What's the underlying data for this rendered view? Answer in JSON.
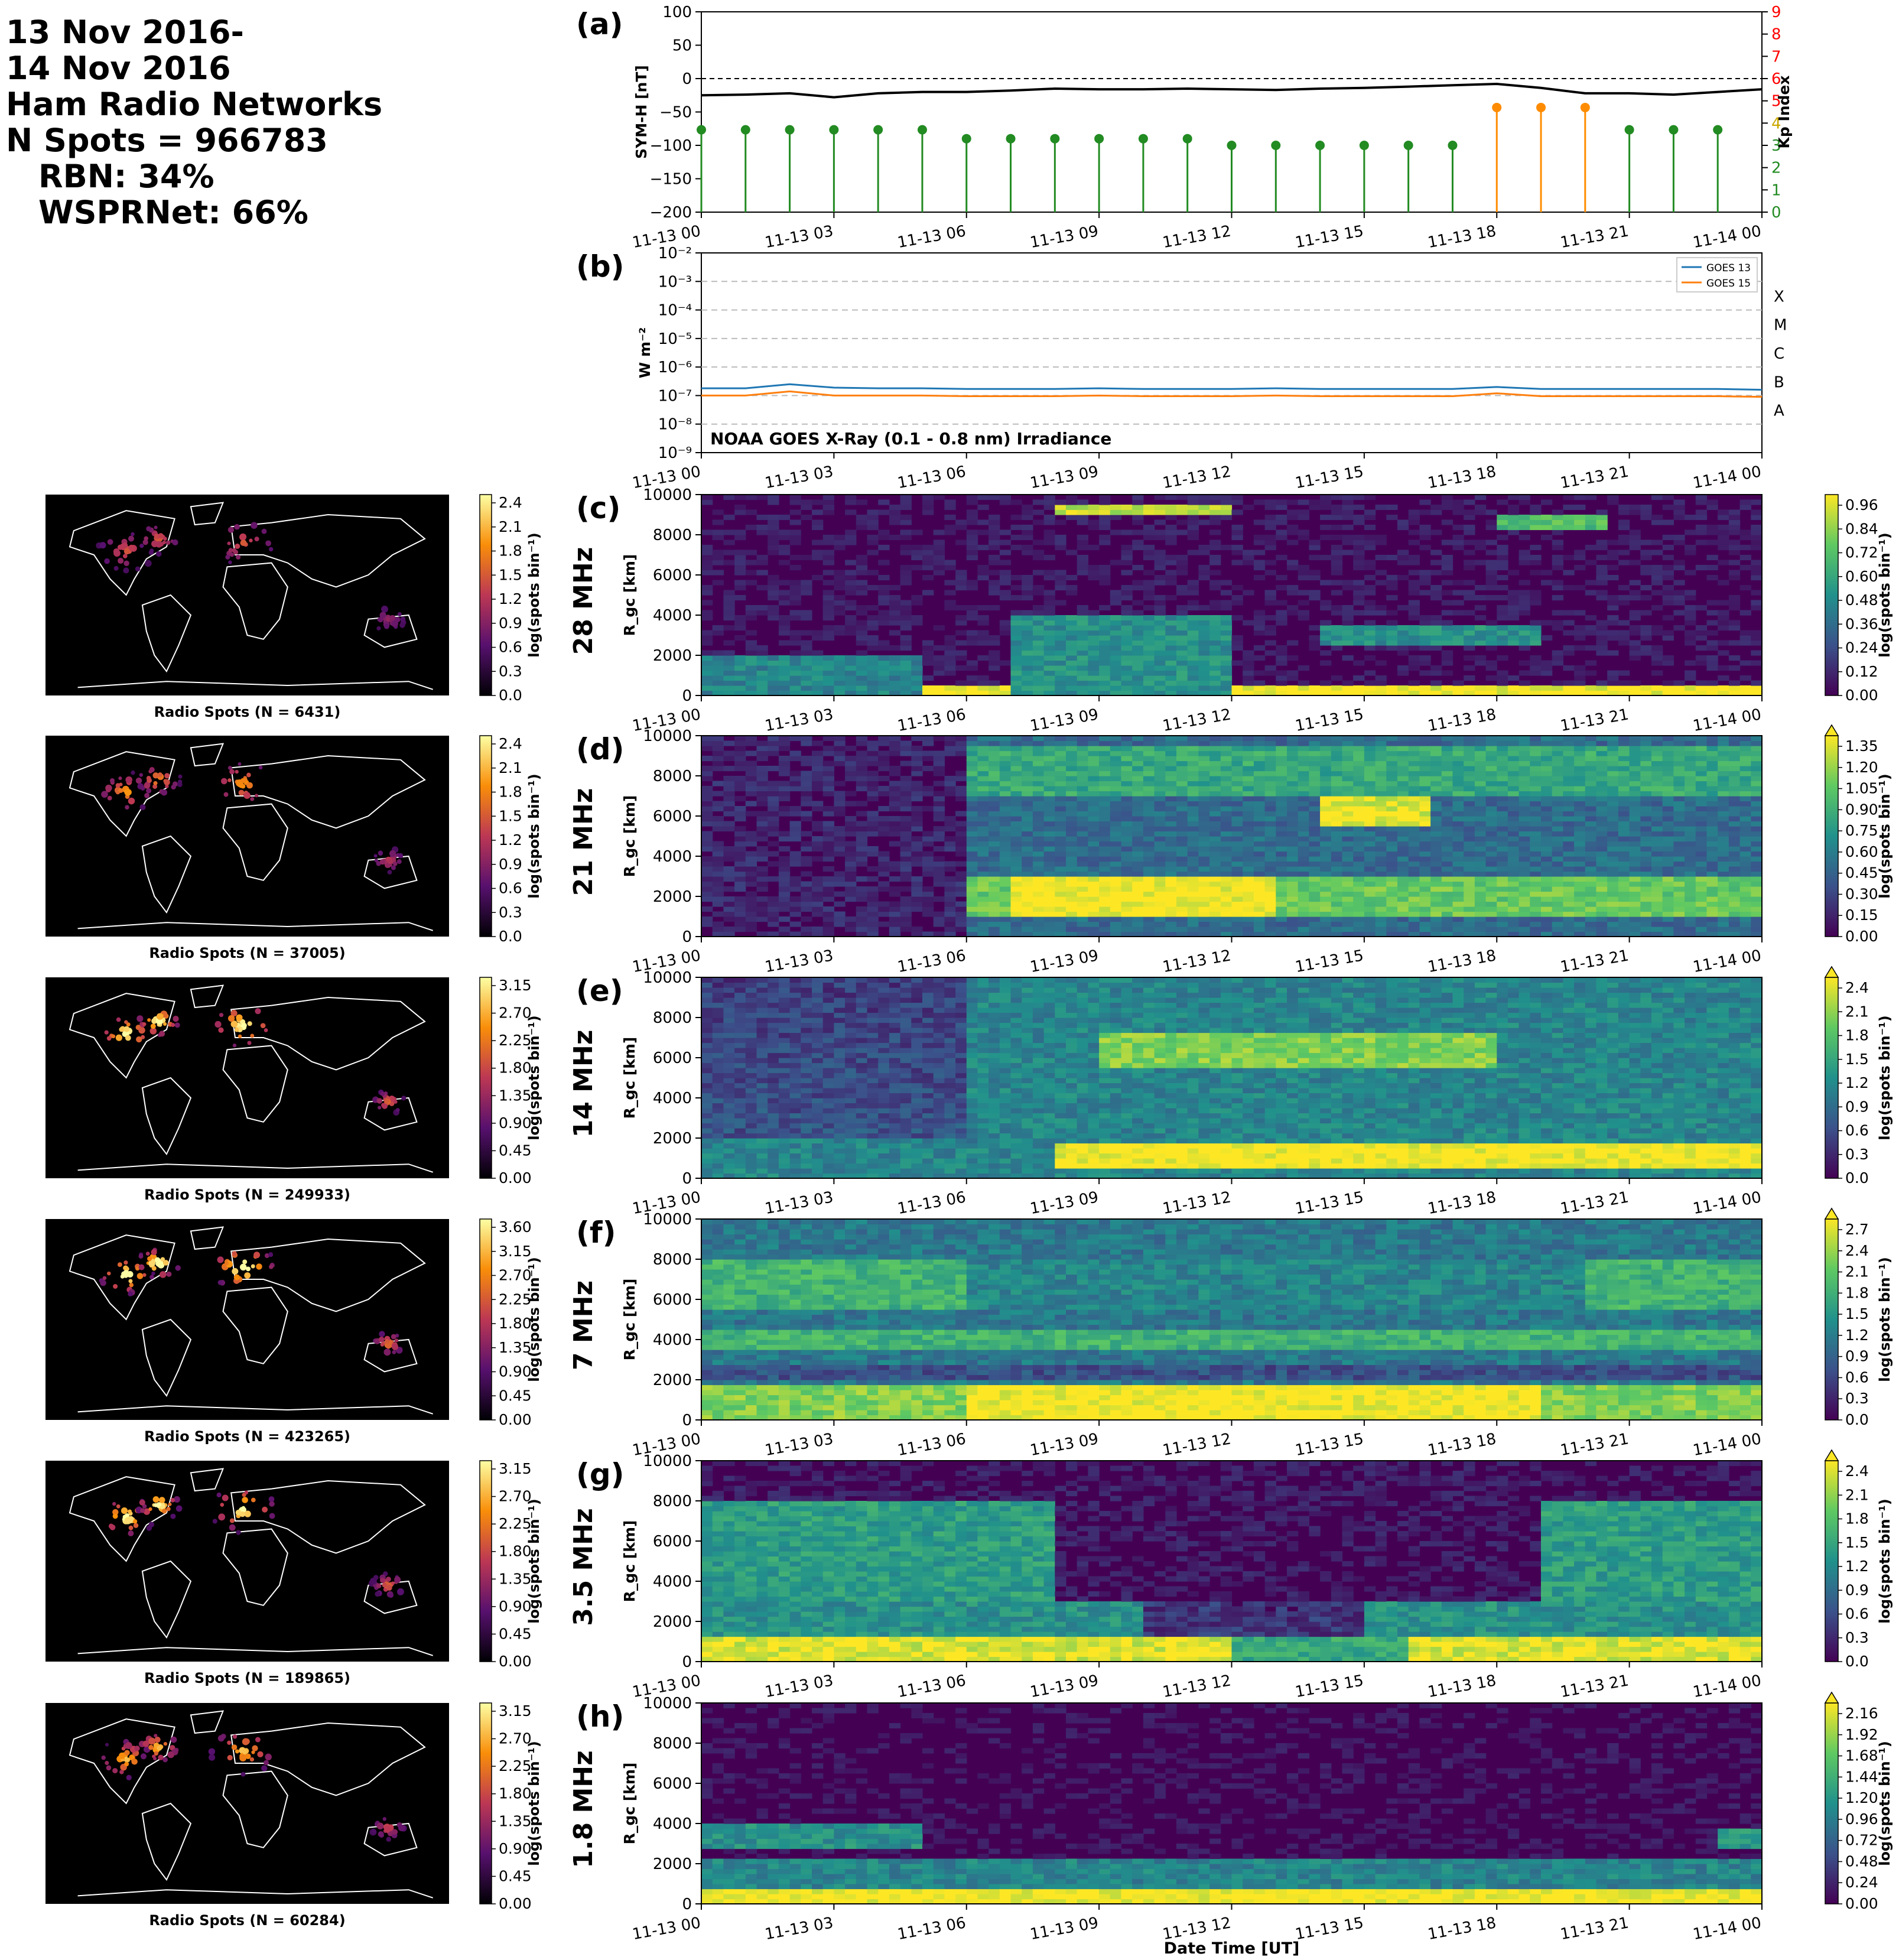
{
  "header": {
    "line1": "13 Nov 2016-",
    "line2": "14 Nov 2016",
    "line3": "Ham Radio Networks",
    "line4": "N Spots = 966783",
    "line5": "RBN: 34%",
    "line6": "WSPRNet: 66%"
  },
  "colors": {
    "symh": "#000000",
    "kp_green": "#228B22",
    "kp_orange": "#ff8c00",
    "kp_axis_red": "#ff0000",
    "goes13": "#1f77b4",
    "goes15": "#ff7f0e",
    "viridis_low": "#440154",
    "viridis_high": "#fde725",
    "inferno_low": "#000004",
    "inferno_high": "#fcffa4",
    "map_background": "#000000",
    "coastline": "#ffffff"
  },
  "time_ticks": [
    "11-13 00",
    "11-13 03",
    "11-13 06",
    "11-13 09",
    "11-13 12",
    "11-13 15",
    "11-13 18",
    "11-13 21",
    "11-14 00"
  ],
  "chart_data": [
    {
      "id": "a",
      "panel_label": "(a)",
      "type": "line",
      "title": "",
      "ylabel": "SYM-H [nT]",
      "ylim": [
        -200,
        100
      ],
      "yticks": [
        "100",
        "50",
        "0",
        "−50",
        "−100",
        "−150",
        "−200"
      ],
      "zero_line": "dashed",
      "series": [
        {
          "values_x_hours": [
            0,
            1,
            2,
            3,
            4,
            5,
            6,
            7,
            8,
            9,
            10,
            11,
            12,
            13,
            14,
            15,
            16,
            17,
            18,
            19,
            20,
            21,
            22,
            23,
            24
          ],
          "values": [
            -25,
            -24,
            -22,
            -28,
            -22,
            -20,
            -20,
            -18,
            -15,
            -16,
            -16,
            -15,
            -16,
            -17,
            -15,
            -14,
            -12,
            -10,
            -8,
            -14,
            -22,
            -22,
            -24,
            -20,
            -16
          ]
        }
      ],
      "secondary_axis": {
        "type": "bar",
        "ylabel": "Kp Index",
        "ylim": [
          0,
          9
        ],
        "yticks": [
          "0",
          "1",
          "2",
          "3",
          "4",
          "5",
          "6",
          "7",
          "8",
          "9"
        ],
        "x_hours": [
          0,
          1,
          2,
          3,
          4,
          5,
          6,
          7,
          8,
          9,
          10,
          11,
          12,
          13,
          14,
          15,
          16,
          17,
          18,
          19,
          20,
          21,
          22,
          23
        ],
        "values": [
          3.7,
          3.7,
          3.7,
          3.7,
          3.7,
          3.7,
          3.3,
          3.3,
          3.3,
          3.3,
          3.3,
          3.3,
          3.0,
          3.0,
          3.0,
          3.0,
          3.0,
          3.0,
          4.7,
          4.7,
          4.7,
          3.7,
          3.7,
          3.7
        ]
      }
    },
    {
      "id": "b",
      "panel_label": "(b)",
      "type": "line",
      "title": "NOAA GOES X-Ray (0.1 - 0.8 nm) Irradiance",
      "ylabel": "W m⁻²",
      "yscale": "log",
      "ylim": [
        1e-09,
        0.01
      ],
      "yticks": [
        "10⁻²",
        "10⁻³",
        "10⁻⁴",
        "10⁻⁵",
        "10⁻⁶",
        "10⁻⁷",
        "10⁻⁸",
        "10⁻⁹"
      ],
      "flare_classes": [
        "X",
        "M",
        "C",
        "B",
        "A"
      ],
      "legend": "top-right",
      "series": [
        {
          "name": "GOES 13",
          "values_x_hours": [
            0,
            1,
            2,
            3,
            4,
            5,
            6,
            7,
            8,
            9,
            10,
            11,
            12,
            13,
            14,
            15,
            16,
            17,
            18,
            19,
            20,
            21,
            22,
            23,
            24
          ],
          "values": [
            1.8e-07,
            1.8e-07,
            2.5e-07,
            1.9e-07,
            1.8e-07,
            1.8e-07,
            1.7e-07,
            1.7e-07,
            1.7e-07,
            1.8e-07,
            1.7e-07,
            1.7e-07,
            1.7e-07,
            1.8e-07,
            1.7e-07,
            1.7e-07,
            1.7e-07,
            1.7e-07,
            2e-07,
            1.7e-07,
            1.7e-07,
            1.7e-07,
            1.7e-07,
            1.7e-07,
            1.6e-07
          ]
        },
        {
          "name": "GOES 15",
          "values_x_hours": [
            0,
            1,
            2,
            3,
            4,
            5,
            6,
            7,
            8,
            9,
            10,
            11,
            12,
            13,
            14,
            15,
            16,
            17,
            18,
            19,
            20,
            21,
            22,
            23,
            24
          ],
          "values": [
            1e-07,
            1e-07,
            1.4e-07,
            1e-07,
            1e-07,
            1e-07,
            9.5e-08,
            9.5e-08,
            9.5e-08,
            1e-07,
            9.5e-08,
            9.5e-08,
            9.5e-08,
            1e-07,
            9.5e-08,
            9.5e-08,
            9.5e-08,
            9.5e-08,
            1.2e-07,
            9.5e-08,
            9.5e-08,
            9.5e-08,
            9.5e-08,
            9.5e-08,
            9e-08
          ]
        }
      ]
    },
    {
      "id": "c",
      "panel_label": "(c)",
      "band": "28 MHz",
      "type": "heatmap",
      "ylabel": "R_gc [km]",
      "ylim": [
        0,
        10000
      ],
      "yticks": [
        "10000",
        "8000",
        "6000",
        "4000",
        "2000",
        "0"
      ],
      "colorbar": {
        "label": "log(spots bin⁻¹)",
        "ticks": [
          "0.96",
          "0.84",
          "0.72",
          "0.60",
          "0.48",
          "0.36",
          "0.24",
          "0.12",
          "0.00"
        ]
      },
      "map": {
        "caption": "Radio Spots (N = 6431)",
        "colorbar_ticks": [
          "2.4",
          "2.1",
          "1.8",
          "1.5",
          "1.2",
          "0.9",
          "0.6",
          "0.3",
          "0.0"
        ],
        "colorbar_label": "log(spots bin⁻¹)"
      }
    },
    {
      "id": "d",
      "panel_label": "(d)",
      "band": "21 MHz",
      "type": "heatmap",
      "ylabel": "R_gc [km]",
      "ylim": [
        0,
        10000
      ],
      "yticks": [
        "10000",
        "8000",
        "6000",
        "4000",
        "2000",
        "0"
      ],
      "colorbar": {
        "label": "log(spots bin⁻¹)",
        "ticks": [
          "1.35",
          "1.20",
          "1.05",
          "0.90",
          "0.75",
          "0.60",
          "0.45",
          "0.30",
          "0.15",
          "0.00"
        ]
      },
      "map": {
        "caption": "Radio Spots (N = 37005)",
        "colorbar_ticks": [
          "2.4",
          "2.1",
          "1.8",
          "1.5",
          "1.2",
          "0.9",
          "0.6",
          "0.3",
          "0.0"
        ],
        "colorbar_label": "log(spots bin⁻¹)"
      }
    },
    {
      "id": "e",
      "panel_label": "(e)",
      "band": "14 MHz",
      "type": "heatmap",
      "ylabel": "R_gc [km]",
      "ylim": [
        0,
        10000
      ],
      "yticks": [
        "10000",
        "8000",
        "6000",
        "4000",
        "2000",
        "0"
      ],
      "colorbar": {
        "label": "log(spots bin⁻¹)",
        "ticks": [
          "2.4",
          "2.1",
          "1.8",
          "1.5",
          "1.2",
          "0.9",
          "0.6",
          "0.3",
          "0.0"
        ]
      },
      "map": {
        "caption": "Radio Spots (N = 249933)",
        "colorbar_ticks": [
          "3.15",
          "2.70",
          "2.25",
          "1.80",
          "1.35",
          "0.90",
          "0.45",
          "0.00"
        ],
        "colorbar_label": "log(spots bin⁻¹)"
      }
    },
    {
      "id": "f",
      "panel_label": "(f)",
      "band": "7 MHz",
      "type": "heatmap",
      "ylabel": "R_gc [km]",
      "ylim": [
        0,
        10000
      ],
      "yticks": [
        "10000",
        "8000",
        "6000",
        "4000",
        "2000",
        "0"
      ],
      "colorbar": {
        "label": "log(spots bin⁻¹)",
        "ticks": [
          "2.7",
          "2.4",
          "2.1",
          "1.8",
          "1.5",
          "1.2",
          "0.9",
          "0.6",
          "0.3",
          "0.0"
        ]
      },
      "map": {
        "caption": "Radio Spots (N = 423265)",
        "colorbar_ticks": [
          "3.60",
          "3.15",
          "2.70",
          "2.25",
          "1.80",
          "1.35",
          "0.90",
          "0.45",
          "0.00"
        ],
        "colorbar_label": "log(spots bin⁻¹)"
      }
    },
    {
      "id": "g",
      "panel_label": "(g)",
      "band": "3.5 MHz",
      "type": "heatmap",
      "ylabel": "R_gc [km]",
      "ylim": [
        0,
        10000
      ],
      "yticks": [
        "10000",
        "8000",
        "6000",
        "4000",
        "2000",
        "0"
      ],
      "colorbar": {
        "label": "log(spots bin⁻¹)",
        "ticks": [
          "2.4",
          "2.1",
          "1.8",
          "1.5",
          "1.2",
          "0.9",
          "0.6",
          "0.3",
          "0.0"
        ]
      },
      "map": {
        "caption": "Radio Spots (N = 189865)",
        "colorbar_ticks": [
          "3.15",
          "2.70",
          "2.25",
          "1.80",
          "1.35",
          "0.90",
          "0.45",
          "0.00"
        ],
        "colorbar_label": "log(spots bin⁻¹)"
      }
    },
    {
      "id": "h",
      "panel_label": "(h)",
      "band": "1.8 MHz",
      "type": "heatmap",
      "ylabel": "R_gc [km]",
      "ylim": [
        0,
        10000
      ],
      "yticks": [
        "10000",
        "8000",
        "6000",
        "4000",
        "2000",
        "0"
      ],
      "xlabel": "Date Time [UT]",
      "colorbar": {
        "label": "log(spots bin⁻¹)",
        "ticks": [
          "2.16",
          "1.92",
          "1.68",
          "1.44",
          "1.20",
          "0.96",
          "0.72",
          "0.48",
          "0.24",
          "0.00"
        ]
      },
      "map": {
        "caption": "Radio Spots (N = 60284)",
        "colorbar_ticks": [
          "3.15",
          "2.70",
          "2.25",
          "1.80",
          "1.35",
          "0.90",
          "0.45",
          "0.00"
        ],
        "colorbar_label": "log(spots bin⁻¹)"
      }
    }
  ]
}
